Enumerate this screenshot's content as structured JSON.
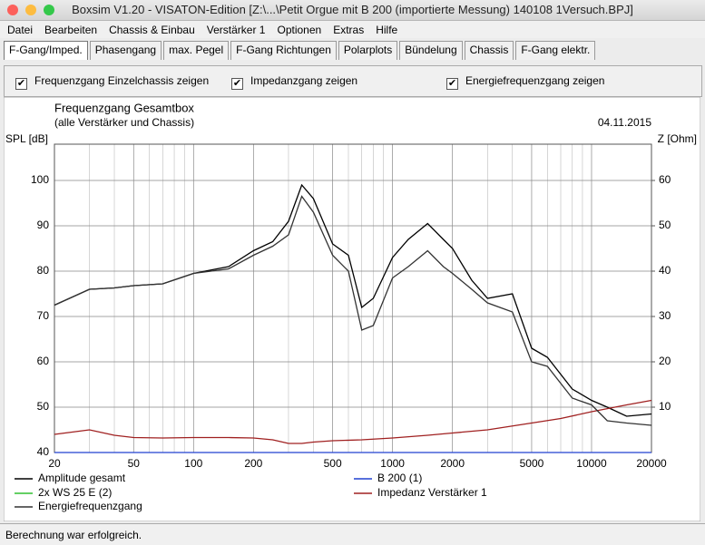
{
  "window": {
    "title": "Boxsim V1.20 - VISATON-Edition [Z:\\...\\Petit Orgue mit B 200 (importierte Messung) 140108 1Versuch.BPJ]"
  },
  "menu": [
    "Datei",
    "Bearbeiten",
    "Chassis & Einbau",
    "Verstärker 1",
    "Optionen",
    "Extras",
    "Hilfe"
  ],
  "tabs": [
    "F-Gang/Imped.",
    "Phasengang",
    "max. Pegel",
    "F-Gang Richtungen",
    "Polarplots",
    "Bündelung",
    "Chassis",
    "F-Gang elektr."
  ],
  "active_tab": 0,
  "checkboxes": [
    {
      "label": "Frequenzgang Einzelchassis zeigen",
      "checked": true
    },
    {
      "label": "Impedanzgang zeigen",
      "checked": true
    },
    {
      "label": "Energiefrequenzgang zeigen",
      "checked": true
    }
  ],
  "chart_data": {
    "type": "line",
    "title": "Frequenzgang Gesamtbox",
    "subtitle": "(alle Verstärker und Chassis)",
    "date": "04.11.2015",
    "y_label": "SPL [dB]",
    "y2_label": "Z [Ohm]",
    "xscale": "log",
    "xlim": [
      20,
      20000
    ],
    "xticks": [
      20,
      50,
      100,
      200,
      500,
      1000,
      2000,
      5000,
      10000,
      20000
    ],
    "xminor_ticks": [
      30,
      40,
      60,
      70,
      80,
      90,
      300,
      400,
      600,
      700,
      800,
      900,
      3000,
      4000,
      6000,
      7000,
      8000,
      9000
    ],
    "ylim": [
      40,
      108
    ],
    "yticks": [
      40,
      50,
      60,
      70,
      80,
      90,
      100
    ],
    "y2lim": [
      0,
      68
    ],
    "y2ticks": [
      10,
      20,
      30,
      40,
      50,
      60
    ],
    "grid": true,
    "series": [
      {
        "name": "Amplitude gesamt",
        "color": "#000000",
        "x": [
          20,
          30,
          40,
          50,
          70,
          100,
          150,
          200,
          250,
          300,
          350,
          400,
          500,
          600,
          700,
          800,
          1000,
          1200,
          1500,
          1800,
          2000,
          2500,
          3000,
          4000,
          5000,
          6000,
          8000,
          10000,
          12000,
          15000,
          20000
        ],
        "values": [
          72.5,
          76,
          76.3,
          76.8,
          77.2,
          79.5,
          81,
          84.5,
          86.5,
          91,
          99,
          96,
          86,
          83.5,
          72,
          74,
          83,
          87,
          90.5,
          87,
          85,
          78,
          74,
          75,
          63,
          61,
          54,
          51.5,
          50,
          48,
          48.5
        ]
      },
      {
        "name": "B 200 (1)",
        "color": "#2040d0",
        "x": [
          20,
          20000
        ],
        "values": [
          40,
          40
        ]
      },
      {
        "name": "2x WS 25 E (2)",
        "color": "#30c030"
      },
      {
        "name": "Impedanz Verstärker 1",
        "color": "#a02020",
        "axis": "y2",
        "x": [
          20,
          30,
          40,
          50,
          70,
          100,
          150,
          200,
          250,
          300,
          350,
          400,
          500,
          700,
          1000,
          1500,
          2000,
          3000,
          5000,
          7000,
          10000,
          15000,
          20000
        ],
        "values": [
          4,
          5,
          3.8,
          3.3,
          3.2,
          3.3,
          3.3,
          3.2,
          2.8,
          2,
          2,
          2.3,
          2.6,
          2.8,
          3.2,
          3.8,
          4.3,
          5,
          6.5,
          7.5,
          9,
          10.5,
          11.5
        ]
      },
      {
        "name": "Energiefrequenzgang",
        "color": "#333333",
        "x": [
          20,
          30,
          40,
          50,
          70,
          100,
          150,
          200,
          250,
          300,
          350,
          400,
          500,
          600,
          700,
          800,
          1000,
          1200,
          1500,
          1800,
          2000,
          2500,
          3000,
          4000,
          5000,
          6000,
          8000,
          10000,
          12000,
          15000,
          20000
        ],
        "values": [
          72.5,
          76,
          76.3,
          76.8,
          77.2,
          79.5,
          80.5,
          83.5,
          85.5,
          88,
          96.5,
          93,
          83.5,
          80,
          67,
          68,
          78.5,
          81,
          84.5,
          81,
          79.5,
          76,
          73,
          71,
          60,
          59,
          52,
          50.5,
          47,
          46.5,
          46
        ]
      }
    ]
  },
  "status": "Berechnung war erfolgreich."
}
